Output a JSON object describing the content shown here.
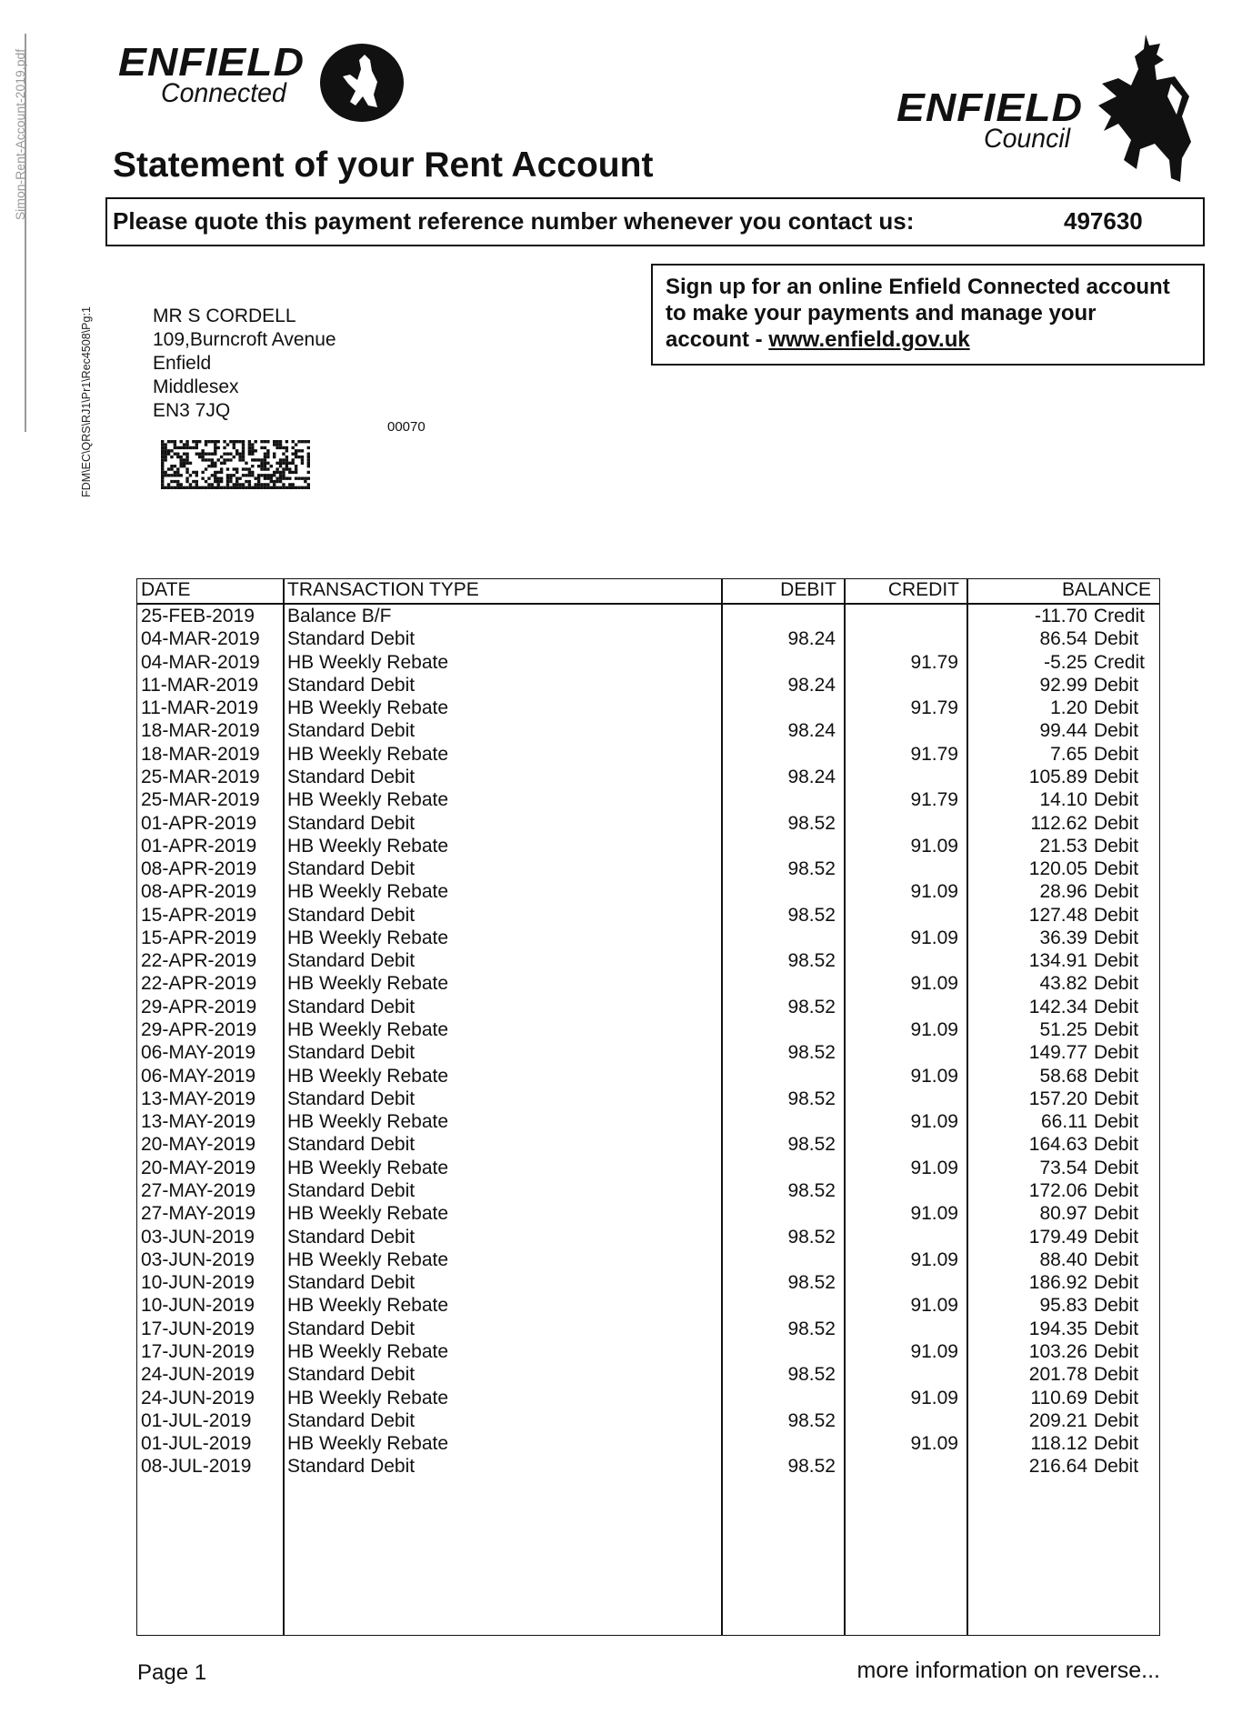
{
  "side": {
    "filename": "Simon-Rent-Account-2019.pdf",
    "print_code": "FDM\\EC\\QRS\\RJ1\\Pr1\\Rec4508\\Pg:1"
  },
  "logos": {
    "connected_brand": "ENFIELD",
    "connected_sub": "Connected",
    "council_brand": "ENFIELD",
    "council_sub": "Council"
  },
  "title": "Statement of your Rent Account",
  "reference": {
    "label": "Please quote this payment reference number whenever you contact us:",
    "number": "497630"
  },
  "signup": {
    "line1": "Sign up for an online Enfield Connected account",
    "line2": "to make your payments and manage your",
    "line3_prefix": "account - ",
    "link": "www.enfield.gov.uk"
  },
  "address": {
    "lines": [
      "MR S CORDELL",
      "109,Burncroft Avenue",
      "Enfield",
      "Middlesex",
      "EN3 7JQ"
    ],
    "code": "00070"
  },
  "table": {
    "headers": {
      "date": "DATE",
      "type": "TRANSACTION TYPE",
      "debit": "DEBIT",
      "credit": "CREDIT",
      "balance": "BALANCE"
    },
    "rows": [
      [
        "25-FEB-2019",
        "Balance B/F",
        "",
        "",
        "-11.70",
        "Credit"
      ],
      [
        "04-MAR-2019",
        "Standard Debit",
        "98.24",
        "",
        "86.54",
        "Debit"
      ],
      [
        "04-MAR-2019",
        "HB Weekly Rebate",
        "",
        "91.79",
        "-5.25",
        "Credit"
      ],
      [
        "11-MAR-2019",
        "Standard Debit",
        "98.24",
        "",
        "92.99",
        "Debit"
      ],
      [
        "11-MAR-2019",
        "HB Weekly Rebate",
        "",
        "91.79",
        "1.20",
        "Debit"
      ],
      [
        "18-MAR-2019",
        "Standard Debit",
        "98.24",
        "",
        "99.44",
        "Debit"
      ],
      [
        "18-MAR-2019",
        "HB Weekly Rebate",
        "",
        "91.79",
        "7.65",
        "Debit"
      ],
      [
        "25-MAR-2019",
        "Standard Debit",
        "98.24",
        "",
        "105.89",
        "Debit"
      ],
      [
        "25-MAR-2019",
        "HB Weekly Rebate",
        "",
        "91.79",
        "14.10",
        "Debit"
      ],
      [
        "01-APR-2019",
        "Standard Debit",
        "98.52",
        "",
        "112.62",
        "Debit"
      ],
      [
        "01-APR-2019",
        "HB Weekly Rebate",
        "",
        "91.09",
        "21.53",
        "Debit"
      ],
      [
        "08-APR-2019",
        "Standard Debit",
        "98.52",
        "",
        "120.05",
        "Debit"
      ],
      [
        "08-APR-2019",
        "HB Weekly Rebate",
        "",
        "91.09",
        "28.96",
        "Debit"
      ],
      [
        "15-APR-2019",
        "Standard Debit",
        "98.52",
        "",
        "127.48",
        "Debit"
      ],
      [
        "15-APR-2019",
        "HB Weekly Rebate",
        "",
        "91.09",
        "36.39",
        "Debit"
      ],
      [
        "22-APR-2019",
        "Standard Debit",
        "98.52",
        "",
        "134.91",
        "Debit"
      ],
      [
        "22-APR-2019",
        "HB Weekly Rebate",
        "",
        "91.09",
        "43.82",
        "Debit"
      ],
      [
        "29-APR-2019",
        "Standard Debit",
        "98.52",
        "",
        "142.34",
        "Debit"
      ],
      [
        "29-APR-2019",
        "HB Weekly Rebate",
        "",
        "91.09",
        "51.25",
        "Debit"
      ],
      [
        "06-MAY-2019",
        "Standard Debit",
        "98.52",
        "",
        "149.77",
        "Debit"
      ],
      [
        "06-MAY-2019",
        "HB Weekly Rebate",
        "",
        "91.09",
        "58.68",
        "Debit"
      ],
      [
        "13-MAY-2019",
        "Standard Debit",
        "98.52",
        "",
        "157.20",
        "Debit"
      ],
      [
        "13-MAY-2019",
        "HB Weekly Rebate",
        "",
        "91.09",
        "66.11",
        "Debit"
      ],
      [
        "20-MAY-2019",
        "Standard Debit",
        "98.52",
        "",
        "164.63",
        "Debit"
      ],
      [
        "20-MAY-2019",
        "HB Weekly Rebate",
        "",
        "91.09",
        "73.54",
        "Debit"
      ],
      [
        "27-MAY-2019",
        "Standard Debit",
        "98.52",
        "",
        "172.06",
        "Debit"
      ],
      [
        "27-MAY-2019",
        "HB Weekly Rebate",
        "",
        "91.09",
        "80.97",
        "Debit"
      ],
      [
        "03-JUN-2019",
        "Standard Debit",
        "98.52",
        "",
        "179.49",
        "Debit"
      ],
      [
        "03-JUN-2019",
        "HB Weekly Rebate",
        "",
        "91.09",
        "88.40",
        "Debit"
      ],
      [
        "10-JUN-2019",
        "Standard Debit",
        "98.52",
        "",
        "186.92",
        "Debit"
      ],
      [
        "10-JUN-2019",
        "HB Weekly Rebate",
        "",
        "91.09",
        "95.83",
        "Debit"
      ],
      [
        "17-JUN-2019",
        "Standard Debit",
        "98.52",
        "",
        "194.35",
        "Debit"
      ],
      [
        "17-JUN-2019",
        "HB Weekly Rebate",
        "",
        "91.09",
        "103.26",
        "Debit"
      ],
      [
        "24-JUN-2019",
        "Standard Debit",
        "98.52",
        "",
        "201.78",
        "Debit"
      ],
      [
        "24-JUN-2019",
        "HB Weekly Rebate",
        "",
        "91.09",
        "110.69",
        "Debit"
      ],
      [
        "01-JUL-2019",
        "Standard Debit",
        "98.52",
        "",
        "209.21",
        "Debit"
      ],
      [
        "01-JUL-2019",
        "HB Weekly Rebate",
        "",
        "91.09",
        "118.12",
        "Debit"
      ],
      [
        "08-JUL-2019",
        "Standard Debit",
        "98.52",
        "",
        "216.64",
        "Debit"
      ]
    ]
  },
  "footer": {
    "page": "Page 1",
    "more": "more information on reverse..."
  }
}
